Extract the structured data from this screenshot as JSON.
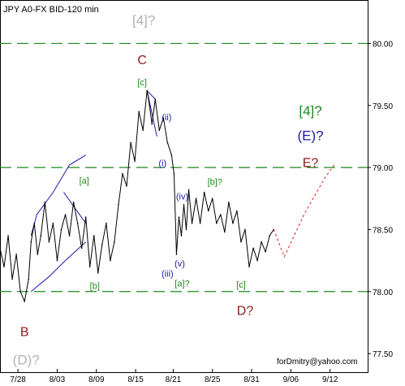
{
  "chart_data": {
    "type": "line",
    "title": "JPY A0-FX BID-120 min",
    "credit": "forDmitry@yahoo.com",
    "ylim": [
      77.35,
      80.35
    ],
    "xlim": [
      0,
      45
    ],
    "grid": false,
    "y_ticks": [
      {
        "value": 80.0,
        "label": "80.00"
      },
      {
        "value": 79.5,
        "label": "79.50"
      },
      {
        "value": 79.0,
        "label": "79.00"
      },
      {
        "value": 78.5,
        "label": "78.50"
      },
      {
        "value": 78.0,
        "label": "78.00"
      },
      {
        "value": 77.5,
        "label": "77.50"
      }
    ],
    "x_ticks": [
      {
        "value": 2.2,
        "label": "7/28"
      },
      {
        "value": 7.0,
        "label": "8/03"
      },
      {
        "value": 11.8,
        "label": "8/09"
      },
      {
        "value": 16.6,
        "label": "8/15"
      },
      {
        "value": 21.2,
        "label": "8/21"
      },
      {
        "value": 26.0,
        "label": "8/25"
      },
      {
        "value": 30.8,
        "label": "8/31"
      },
      {
        "value": 35.6,
        "label": "9/06"
      },
      {
        "value": 40.4,
        "label": "9/12"
      }
    ],
    "levels": [
      {
        "value": 80.0,
        "color": "#1e8a1e"
      },
      {
        "value": 79.0,
        "color": "#1e8a1e"
      },
      {
        "value": 78.0,
        "color": "#1e8a1e"
      }
    ],
    "series": [
      {
        "color": "#000000",
        "x": [
          0.0,
          0.5,
          1.0,
          1.5,
          2.0,
          2.5,
          3.0,
          3.5,
          3.8,
          4.2,
          4.6,
          5.0,
          5.5,
          6.0,
          6.5,
          7.0,
          7.5,
          8.0,
          8.5,
          9.0,
          9.5,
          10.0,
          10.5,
          11.0,
          11.5,
          12.0,
          12.5,
          13.0,
          13.5,
          14.0,
          14.5,
          15.0,
          15.5,
          16.0,
          16.5,
          17.0,
          17.5,
          18.0,
          18.3,
          18.6,
          19.0,
          19.5,
          20.0,
          20.5,
          21.0,
          21.3,
          21.6,
          21.9,
          22.2,
          22.5,
          22.8,
          23.1,
          23.5,
          24.0,
          24.5,
          25.0,
          25.5,
          26.0,
          26.5,
          27.0,
          27.5,
          28.0,
          28.5,
          29.0,
          29.5,
          30.0,
          30.5,
          31.0,
          31.5,
          32.0,
          32.5,
          33.0,
          33.5
        ],
        "values": [
          78.35,
          78.2,
          78.45,
          78.1,
          78.3,
          78.0,
          77.92,
          78.1,
          78.4,
          78.55,
          78.3,
          78.45,
          78.72,
          78.4,
          78.55,
          78.25,
          78.5,
          78.62,
          78.45,
          78.72,
          78.55,
          78.35,
          78.6,
          78.2,
          78.45,
          78.15,
          78.38,
          78.55,
          78.25,
          78.4,
          78.7,
          78.95,
          78.85,
          79.2,
          79.05,
          79.45,
          79.3,
          79.62,
          79.5,
          79.35,
          79.55,
          79.3,
          79.4,
          79.2,
          79.1,
          78.95,
          78.3,
          78.6,
          78.45,
          78.7,
          78.5,
          78.82,
          78.55,
          78.75,
          78.55,
          78.8,
          78.65,
          78.75,
          78.55,
          78.62,
          78.48,
          78.72,
          78.55,
          78.65,
          78.4,
          78.5,
          78.2,
          78.35,
          78.25,
          78.4,
          78.32,
          78.45,
          78.5
        ]
      }
    ],
    "projection": {
      "color": "#dd2222",
      "x": [
        33.5,
        34.8,
        37.2,
        39.8,
        41.0
      ],
      "values": [
        78.5,
        78.28,
        78.62,
        78.92,
        79.03
      ]
    },
    "channels": [
      {
        "color": "#1a1aa6",
        "x": [
          3.8,
          4.5,
          6.5,
          8.5,
          10.5
        ],
        "values": [
          78.45,
          78.62,
          78.8,
          79.02,
          79.1
        ]
      },
      {
        "color": "#1a1aa6",
        "x": [
          3.8,
          6.0,
          8.0,
          10.5
        ],
        "values": [
          78.0,
          78.12,
          78.25,
          78.4
        ]
      },
      {
        "color": "#1a1aa6",
        "x": [
          7.8,
          10.5
        ],
        "values": [
          78.8,
          78.55
        ]
      },
      {
        "color": "#1a1aa6",
        "x": [
          18.0,
          19.0
        ],
        "values": [
          79.62,
          79.55
        ]
      },
      {
        "color": "#1a1aa6",
        "x": [
          18.0,
          19.2
        ],
        "values": [
          79.62,
          79.25
        ]
      }
    ],
    "annotations": [
      {
        "text": "[4]?",
        "x": 17.6,
        "y": 80.18,
        "color": "#b3b3b3",
        "size": 17
      },
      {
        "text": "C",
        "x": 17.4,
        "y": 79.86,
        "color": "#8b1a1a",
        "size": 16
      },
      {
        "text": "[c]",
        "x": 17.4,
        "y": 79.68,
        "color": "#1e8a1e",
        "size": 11
      },
      {
        "text": "(ii)",
        "x": 20.4,
        "y": 79.4,
        "color": "#1a1aa6",
        "size": 11
      },
      {
        "text": "(i)",
        "x": 19.9,
        "y": 79.03,
        "color": "#1a1aa6",
        "size": 11
      },
      {
        "text": "[4]?",
        "x": 38.0,
        "y": 79.45,
        "color": "#1e8a1e",
        "size": 17
      },
      {
        "text": "(E)?",
        "x": 38.0,
        "y": 79.25,
        "color": "#1a1aa6",
        "size": 17
      },
      {
        "text": "E?",
        "x": 38.0,
        "y": 79.03,
        "color": "#8b1a1a",
        "size": 16
      },
      {
        "text": "[b]?",
        "x": 26.3,
        "y": 78.88,
        "color": "#1e8a1e",
        "size": 11
      },
      {
        "text": "(iv)",
        "x": 22.3,
        "y": 78.76,
        "color": "#1a1aa6",
        "size": 11
      },
      {
        "text": "[a]",
        "x": 10.3,
        "y": 78.89,
        "color": "#1e8a1e",
        "size": 11
      },
      {
        "text": "(v)",
        "x": 22.0,
        "y": 78.22,
        "color": "#1a1aa6",
        "size": 11
      },
      {
        "text": "(iii)",
        "x": 20.5,
        "y": 78.14,
        "color": "#1a1aa6",
        "size": 11
      },
      {
        "text": "[a]?",
        "x": 22.3,
        "y": 78.06,
        "color": "#1e8a1e",
        "size": 11
      },
      {
        "text": "[c]",
        "x": 29.5,
        "y": 78.05,
        "color": "#1e8a1e",
        "size": 11
      },
      {
        "text": "[b]",
        "x": 11.6,
        "y": 78.04,
        "color": "#1e8a1e",
        "size": 11
      },
      {
        "text": "D?",
        "x": 30.0,
        "y": 77.84,
        "color": "#8b1a1a",
        "size": 16
      },
      {
        "text": "B",
        "x": 3.0,
        "y": 77.67,
        "color": "#8b1a1a",
        "size": 16
      },
      {
        "text": "(D)?",
        "x": 3.2,
        "y": 77.44,
        "color": "#b3b3b3",
        "size": 17
      }
    ]
  }
}
